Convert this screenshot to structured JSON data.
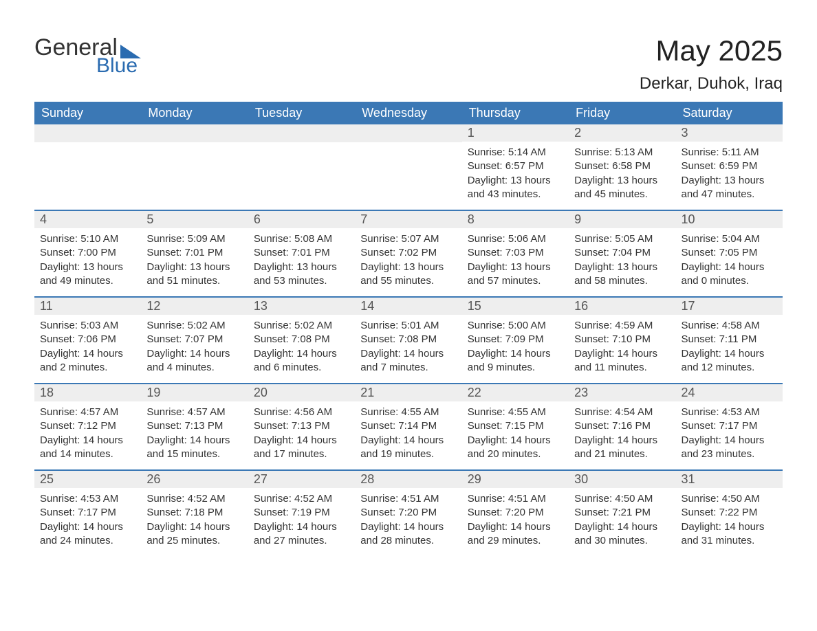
{
  "brand": {
    "word1": "General",
    "word2": "Blue"
  },
  "title": "May 2025",
  "location": "Derkar, Duhok, Iraq",
  "colors": {
    "header_bg": "#3b78b5",
    "header_text": "#ffffff",
    "daynum_bg": "#eeeeee",
    "daynum_text": "#555555",
    "body_text": "#333333",
    "rule": "#3b78b5",
    "brand_blue": "#2a6bb0",
    "page_bg": "#ffffff"
  },
  "weekdays": [
    "Sunday",
    "Monday",
    "Tuesday",
    "Wednesday",
    "Thursday",
    "Friday",
    "Saturday"
  ],
  "weeks": [
    [
      null,
      null,
      null,
      null,
      {
        "n": "1",
        "sunrise": "5:14 AM",
        "sunset": "6:57 PM",
        "daylight": "13 hours and 43 minutes."
      },
      {
        "n": "2",
        "sunrise": "5:13 AM",
        "sunset": "6:58 PM",
        "daylight": "13 hours and 45 minutes."
      },
      {
        "n": "3",
        "sunrise": "5:11 AM",
        "sunset": "6:59 PM",
        "daylight": "13 hours and 47 minutes."
      }
    ],
    [
      {
        "n": "4",
        "sunrise": "5:10 AM",
        "sunset": "7:00 PM",
        "daylight": "13 hours and 49 minutes."
      },
      {
        "n": "5",
        "sunrise": "5:09 AM",
        "sunset": "7:01 PM",
        "daylight": "13 hours and 51 minutes."
      },
      {
        "n": "6",
        "sunrise": "5:08 AM",
        "sunset": "7:01 PM",
        "daylight": "13 hours and 53 minutes."
      },
      {
        "n": "7",
        "sunrise": "5:07 AM",
        "sunset": "7:02 PM",
        "daylight": "13 hours and 55 minutes."
      },
      {
        "n": "8",
        "sunrise": "5:06 AM",
        "sunset": "7:03 PM",
        "daylight": "13 hours and 57 minutes."
      },
      {
        "n": "9",
        "sunrise": "5:05 AM",
        "sunset": "7:04 PM",
        "daylight": "13 hours and 58 minutes."
      },
      {
        "n": "10",
        "sunrise": "5:04 AM",
        "sunset": "7:05 PM",
        "daylight": "14 hours and 0 minutes."
      }
    ],
    [
      {
        "n": "11",
        "sunrise": "5:03 AM",
        "sunset": "7:06 PM",
        "daylight": "14 hours and 2 minutes."
      },
      {
        "n": "12",
        "sunrise": "5:02 AM",
        "sunset": "7:07 PM",
        "daylight": "14 hours and 4 minutes."
      },
      {
        "n": "13",
        "sunrise": "5:02 AM",
        "sunset": "7:08 PM",
        "daylight": "14 hours and 6 minutes."
      },
      {
        "n": "14",
        "sunrise": "5:01 AM",
        "sunset": "7:08 PM",
        "daylight": "14 hours and 7 minutes."
      },
      {
        "n": "15",
        "sunrise": "5:00 AM",
        "sunset": "7:09 PM",
        "daylight": "14 hours and 9 minutes."
      },
      {
        "n": "16",
        "sunrise": "4:59 AM",
        "sunset": "7:10 PM",
        "daylight": "14 hours and 11 minutes."
      },
      {
        "n": "17",
        "sunrise": "4:58 AM",
        "sunset": "7:11 PM",
        "daylight": "14 hours and 12 minutes."
      }
    ],
    [
      {
        "n": "18",
        "sunrise": "4:57 AM",
        "sunset": "7:12 PM",
        "daylight": "14 hours and 14 minutes."
      },
      {
        "n": "19",
        "sunrise": "4:57 AM",
        "sunset": "7:13 PM",
        "daylight": "14 hours and 15 minutes."
      },
      {
        "n": "20",
        "sunrise": "4:56 AM",
        "sunset": "7:13 PM",
        "daylight": "14 hours and 17 minutes."
      },
      {
        "n": "21",
        "sunrise": "4:55 AM",
        "sunset": "7:14 PM",
        "daylight": "14 hours and 19 minutes."
      },
      {
        "n": "22",
        "sunrise": "4:55 AM",
        "sunset": "7:15 PM",
        "daylight": "14 hours and 20 minutes."
      },
      {
        "n": "23",
        "sunrise": "4:54 AM",
        "sunset": "7:16 PM",
        "daylight": "14 hours and 21 minutes."
      },
      {
        "n": "24",
        "sunrise": "4:53 AM",
        "sunset": "7:17 PM",
        "daylight": "14 hours and 23 minutes."
      }
    ],
    [
      {
        "n": "25",
        "sunrise": "4:53 AM",
        "sunset": "7:17 PM",
        "daylight": "14 hours and 24 minutes."
      },
      {
        "n": "26",
        "sunrise": "4:52 AM",
        "sunset": "7:18 PM",
        "daylight": "14 hours and 25 minutes."
      },
      {
        "n": "27",
        "sunrise": "4:52 AM",
        "sunset": "7:19 PM",
        "daylight": "14 hours and 27 minutes."
      },
      {
        "n": "28",
        "sunrise": "4:51 AM",
        "sunset": "7:20 PM",
        "daylight": "14 hours and 28 minutes."
      },
      {
        "n": "29",
        "sunrise": "4:51 AM",
        "sunset": "7:20 PM",
        "daylight": "14 hours and 29 minutes."
      },
      {
        "n": "30",
        "sunrise": "4:50 AM",
        "sunset": "7:21 PM",
        "daylight": "14 hours and 30 minutes."
      },
      {
        "n": "31",
        "sunrise": "4:50 AM",
        "sunset": "7:22 PM",
        "daylight": "14 hours and 31 minutes."
      }
    ]
  ],
  "labels": {
    "sunrise": "Sunrise: ",
    "sunset": "Sunset: ",
    "daylight": "Daylight: "
  }
}
